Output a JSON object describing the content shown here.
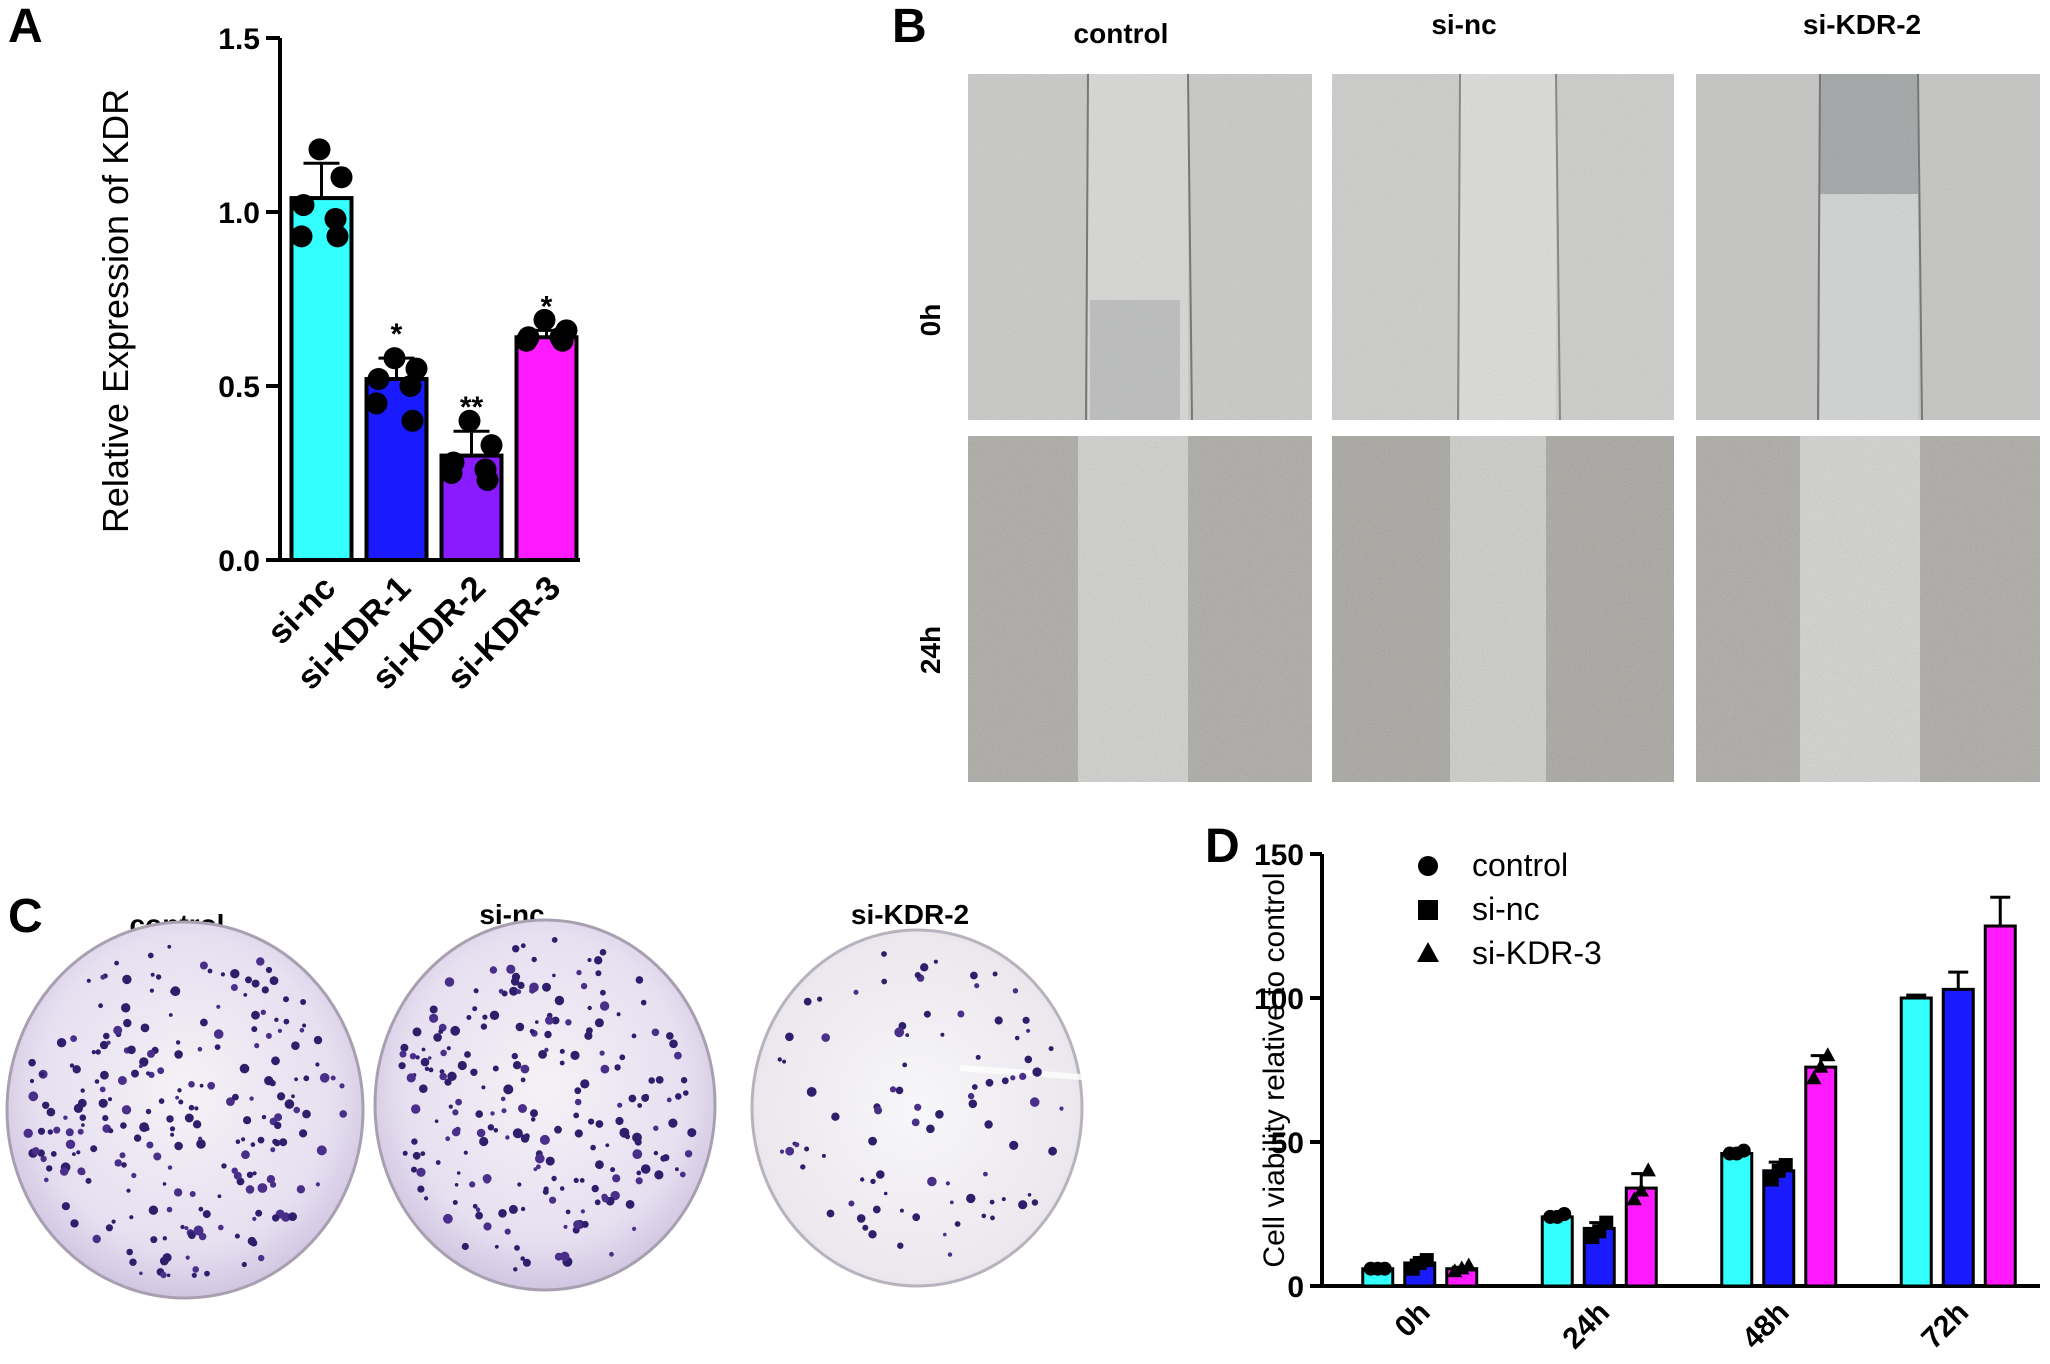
{
  "figure": {
    "panels": {
      "A": "A",
      "B": "B",
      "C": "C",
      "D": "D"
    }
  },
  "panel_b": {
    "columns": [
      "control",
      "si-nc",
      "si-KDR-2"
    ],
    "rows": [
      "0h",
      "24h"
    ]
  },
  "panel_c": {
    "columns": [
      "control",
      "si-nc",
      "si-KDR-2"
    ]
  },
  "chart_data": [
    {
      "type": "bar",
      "panel": "A",
      "title": "",
      "xlabel": "",
      "ylabel": "Relative Expression of  KDR",
      "ylim": [
        0,
        1.5
      ],
      "yticks": [
        "0.0",
        "0.5",
        "1.0",
        "1.5"
      ],
      "categories": [
        "si-nc",
        "si-KDR-1",
        "si-KDR-2",
        "si-KDR-3"
      ],
      "values": [
        1.04,
        0.52,
        0.3,
        0.64
      ],
      "errors": [
        0.1,
        0.06,
        0.07,
        0.02
      ],
      "points": [
        [
          1.18,
          1.1,
          1.02,
          0.98,
          0.93,
          0.93
        ],
        [
          0.58,
          0.55,
          0.52,
          0.5,
          0.45,
          0.4
        ],
        [
          0.4,
          0.33,
          0.28,
          0.26,
          0.25,
          0.23
        ],
        [
          0.69,
          0.66,
          0.64,
          0.64,
          0.63,
          0.63
        ]
      ],
      "significance": [
        "",
        "*",
        "**",
        "*"
      ],
      "colors": [
        "#33ffff",
        "#1a1aff",
        "#8a1aff",
        "#ff1aff"
      ],
      "grid": false
    },
    {
      "type": "bar",
      "panel": "D",
      "title": "",
      "xlabel": "",
      "ylabel": "Cell viability relative to control",
      "ylim": [
        0,
        150
      ],
      "yticks": [
        "0",
        "50",
        "100",
        "150"
      ],
      "categories": [
        "0h",
        "24h",
        "48h",
        "72h"
      ],
      "series": [
        {
          "name": "control",
          "marker": "circle",
          "color": "#33ffff",
          "values": [
            6,
            24,
            46,
            100
          ],
          "errors": [
            0.5,
            1,
            1,
            1
          ],
          "points": [
            [
              6,
              6,
              6
            ],
            [
              24,
              24,
              25
            ],
            [
              46,
              46,
              47
            ]
          ]
        },
        {
          "name": "si-nc",
          "marker": "square",
          "color": "#1a1aff",
          "values": [
            8,
            20,
            40,
            103
          ],
          "errors": [
            1,
            2,
            3,
            6
          ],
          "points": [
            [
              6,
              8,
              9
            ],
            [
              17,
              19,
              22
            ],
            [
              37,
              40,
              42
            ]
          ]
        },
        {
          "name": "si-KDR-3",
          "marker": "triangle",
          "color": "#ff1aff",
          "values": [
            6,
            34,
            76,
            125
          ],
          "errors": [
            0.5,
            5,
            4,
            10
          ],
          "points": [
            [
              5,
              6,
              7
            ],
            [
              30,
              33,
              40
            ],
            [
              72,
              76,
              80
            ]
          ]
        }
      ],
      "legend": "top-left",
      "grid": false
    }
  ]
}
